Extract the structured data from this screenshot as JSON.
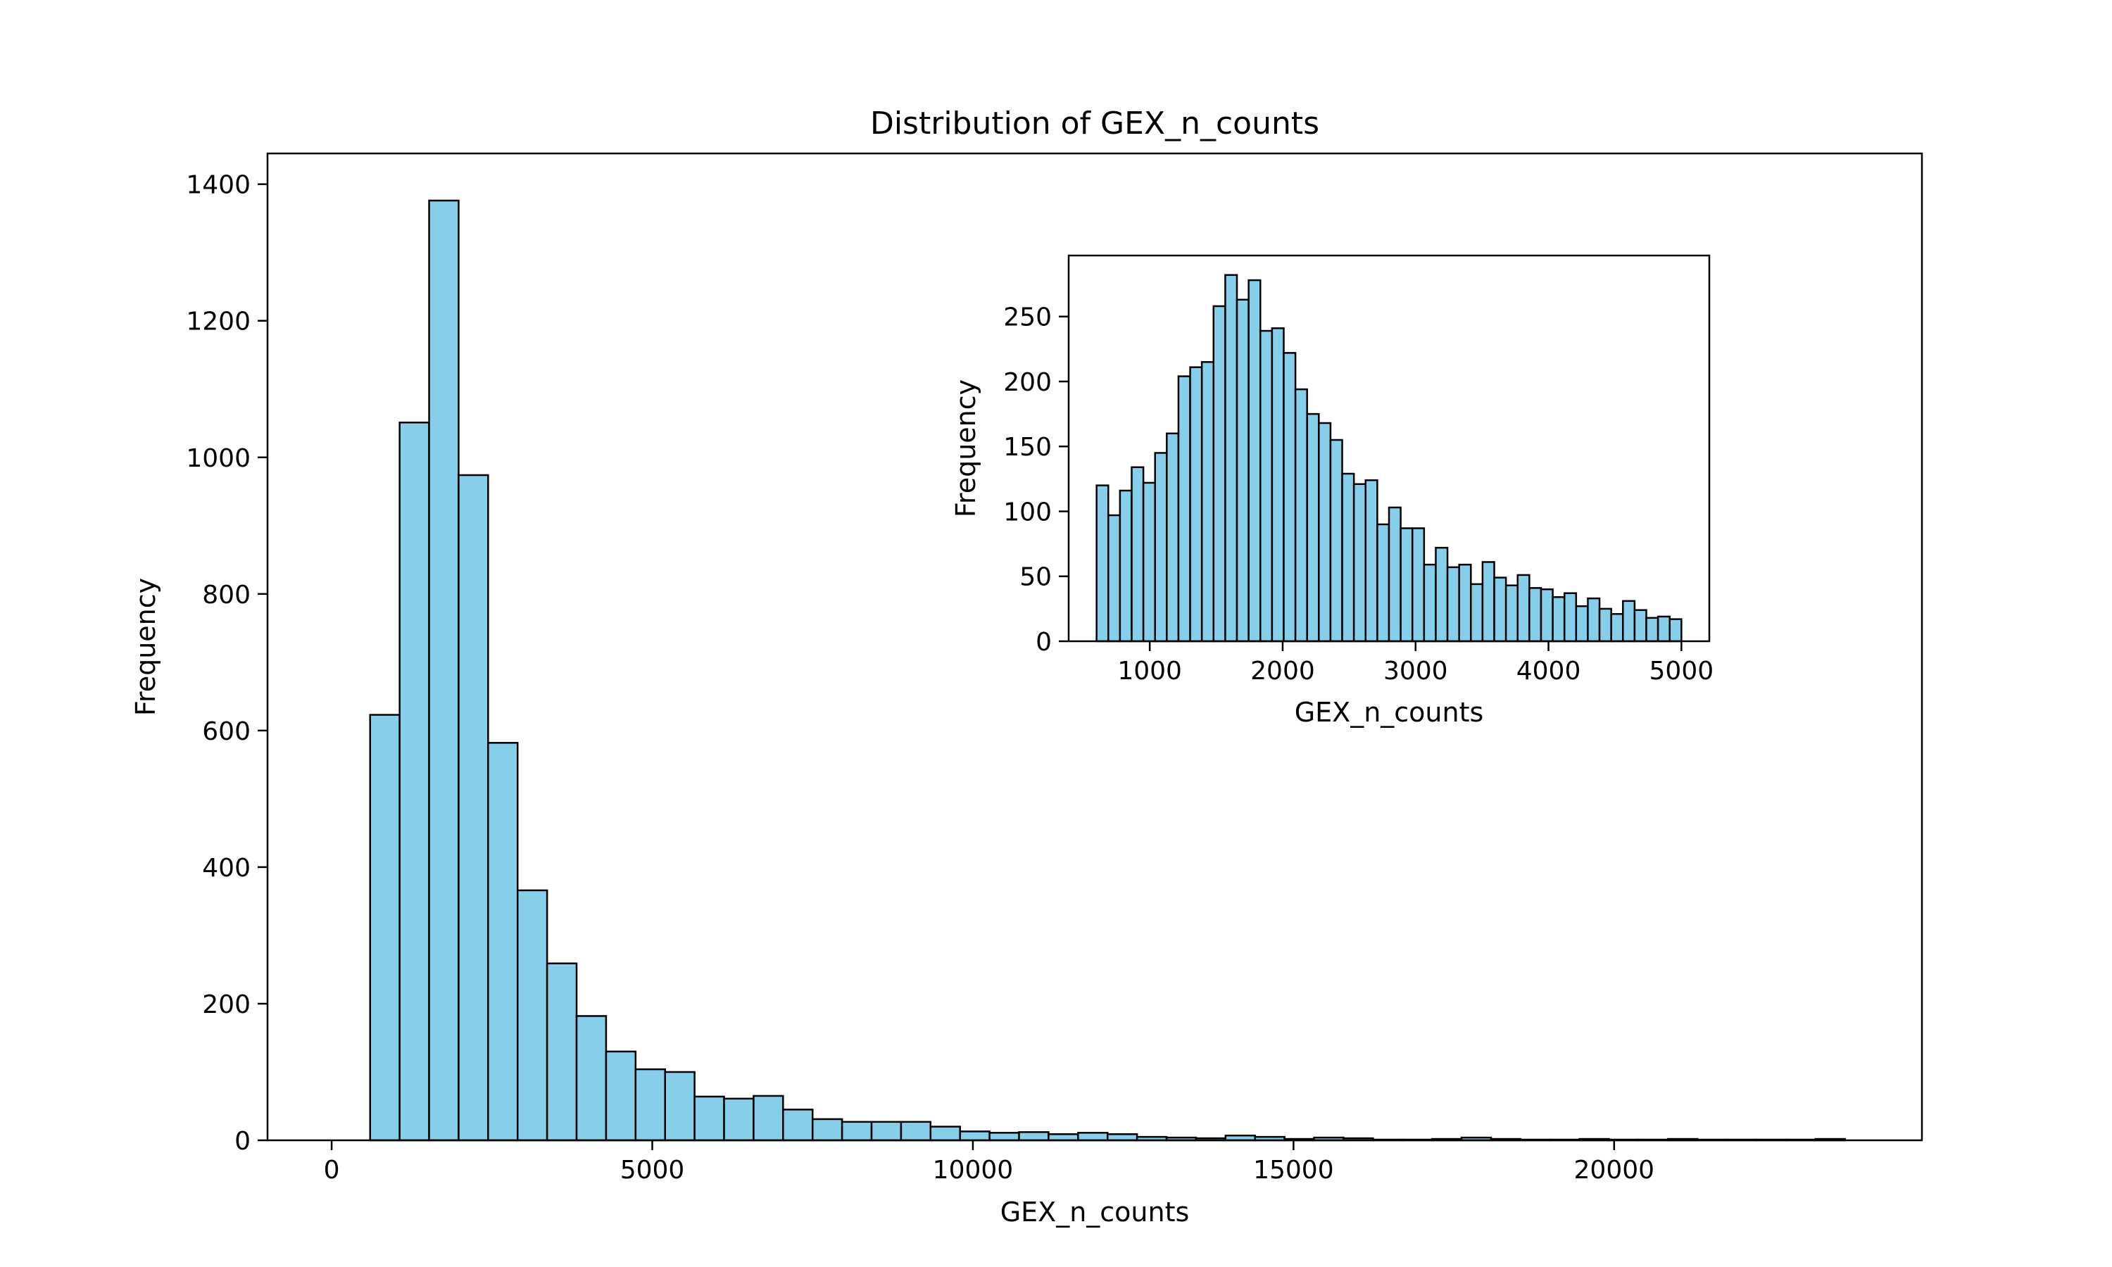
{
  "chart_data": [
    {
      "type": "bar",
      "title": "Distribution of GEX_n_counts",
      "xlabel": "GEX_n_counts",
      "ylabel": "Frequency",
      "xlim": [
        -1000,
        24800
      ],
      "ylim": [
        0,
        1445
      ],
      "bar_color": "#87ceeb",
      "edge_color": "#000000",
      "bin_start": 600,
      "bin_width": 460,
      "values": [
        623,
        1051,
        1376,
        974,
        582,
        366,
        259,
        182,
        130,
        104,
        100,
        64,
        61,
        65,
        45,
        31,
        27,
        27,
        27,
        20,
        13,
        11,
        12,
        9,
        11,
        9,
        5,
        4,
        3,
        7,
        5,
        2,
        4,
        3,
        1,
        1,
        2,
        4,
        2,
        1,
        1,
        2,
        1,
        1,
        2,
        1,
        1,
        1,
        1,
        2
      ],
      "xticks": [
        0,
        5000,
        10000,
        15000,
        20000
      ],
      "xtick_labels": [
        "0",
        "5000",
        "10000",
        "15000",
        "20000"
      ],
      "yticks": [
        0,
        200,
        400,
        600,
        800,
        1000,
        1200,
        1400
      ],
      "ytick_labels": [
        "0",
        "200",
        "400",
        "600",
        "800",
        "1000",
        "1200",
        "1400"
      ],
      "grid": false
    },
    {
      "type": "bar",
      "title": "",
      "xlabel": "GEX_n_counts",
      "ylabel": "Frequency",
      "xlim": [
        390,
        5210
      ],
      "ylim": [
        0,
        297
      ],
      "bar_color": "#87ceeb",
      "edge_color": "#000000",
      "bin_start": 600,
      "bin_width": 88,
      "values": [
        120,
        97,
        116,
        134,
        122,
        145,
        160,
        204,
        211,
        215,
        258,
        282,
        263,
        278,
        239,
        241,
        222,
        194,
        175,
        168,
        155,
        129,
        121,
        124,
        90,
        103,
        87,
        87,
        59,
        72,
        57,
        59,
        44,
        61,
        49,
        43,
        51,
        41,
        40,
        34,
        37,
        27,
        33,
        25,
        21,
        31,
        24,
        18,
        19,
        17
      ],
      "xticks": [
        1000,
        2000,
        3000,
        4000,
        5000
      ],
      "xtick_labels": [
        "1000",
        "2000",
        "3000",
        "4000",
        "5000"
      ],
      "yticks": [
        0,
        50,
        100,
        150,
        200,
        250
      ],
      "ytick_labels": [
        "0",
        "50",
        "100",
        "150",
        "200",
        "250"
      ],
      "grid": false
    }
  ]
}
